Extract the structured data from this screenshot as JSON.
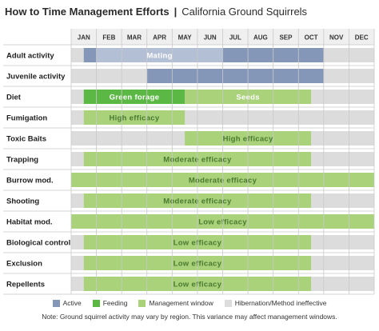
{
  "title": {
    "bold": "How to Time Management Efforts",
    "separator": "|",
    "subtitle": "California Ground Squirrels"
  },
  "colors": {
    "active": "#8597b8",
    "active_light": "#b3bfd4",
    "feeding": "#5bb844",
    "management": "#a9d27b",
    "hibernation": "#dcdcdc",
    "header_bg": "#efefef",
    "row_bg": "#ffffff",
    "grid": "#c9c9c9"
  },
  "chart_data": {
    "type": "table",
    "months": [
      "JAN",
      "FEB",
      "MAR",
      "APR",
      "MAY",
      "JUN",
      "JUL",
      "AUG",
      "SEP",
      "OCT",
      "NOV",
      "DEC"
    ],
    "rows": [
      {
        "label": "Adult activity",
        "segments": [
          {
            "kind": "hibernation",
            "start": 0,
            "end": 12
          },
          {
            "kind": "active",
            "start": 0.5,
            "end": 1
          },
          {
            "kind": "active_light",
            "start": 1,
            "end": 6
          },
          {
            "kind": "active",
            "start": 6,
            "end": 10
          }
        ],
        "labels": [
          {
            "text": "Mating",
            "start": 1,
            "end": 6,
            "color": "#ffffff"
          }
        ]
      },
      {
        "label": "Juvenile activity",
        "segments": [
          {
            "kind": "hibernation",
            "start": 0,
            "end": 12
          },
          {
            "kind": "active",
            "start": 3,
            "end": 10
          }
        ],
        "labels": []
      },
      {
        "label": "Diet",
        "segments": [
          {
            "kind": "hibernation",
            "start": 0,
            "end": 12
          },
          {
            "kind": "feeding",
            "start": 0.5,
            "end": 4.5
          },
          {
            "kind": "management",
            "start": 4.5,
            "end": 9.5
          }
        ],
        "labels": [
          {
            "text": "Green forage",
            "start": 0.5,
            "end": 4.5,
            "color": "#ffffff"
          },
          {
            "text": "Seeds",
            "start": 4.5,
            "end": 9.5,
            "color": "#ffffff"
          }
        ]
      },
      {
        "label": "Fumigation",
        "segments": [
          {
            "kind": "hibernation",
            "start": 0,
            "end": 12
          },
          {
            "kind": "management",
            "start": 0.5,
            "end": 4.5
          }
        ],
        "labels": [
          {
            "text": "High efficacy",
            "start": 0.5,
            "end": 4.5,
            "color": "#4a7a30"
          }
        ]
      },
      {
        "label": "Toxic Baits",
        "segments": [
          {
            "kind": "hibernation",
            "start": 0,
            "end": 12
          },
          {
            "kind": "management",
            "start": 4.5,
            "end": 9.5
          }
        ],
        "labels": [
          {
            "text": "High efficacy",
            "start": 4.5,
            "end": 9.5,
            "color": "#4a7a30"
          }
        ]
      },
      {
        "label": "Trapping",
        "segments": [
          {
            "kind": "hibernation",
            "start": 0,
            "end": 12
          },
          {
            "kind": "management",
            "start": 0.5,
            "end": 9.5
          }
        ],
        "labels": [
          {
            "text": "Moderate efficacy",
            "start": 0.5,
            "end": 9.5,
            "color": "#4a7a30"
          }
        ]
      },
      {
        "label": "Burrow mod.",
        "segments": [
          {
            "kind": "management",
            "start": 0,
            "end": 12
          }
        ],
        "labels": [
          {
            "text": "Moderate efficacy",
            "start": 0,
            "end": 12,
            "color": "#4a7a30"
          }
        ]
      },
      {
        "label": "Shooting",
        "segments": [
          {
            "kind": "hibernation",
            "start": 0,
            "end": 12
          },
          {
            "kind": "management",
            "start": 0.5,
            "end": 9.5
          }
        ],
        "labels": [
          {
            "text": "Moderate efficacy",
            "start": 0.5,
            "end": 9.5,
            "color": "#4a7a30"
          }
        ]
      },
      {
        "label": "Habitat mod.",
        "segments": [
          {
            "kind": "management",
            "start": 0,
            "end": 12
          }
        ],
        "labels": [
          {
            "text": "Low efficacy",
            "start": 0,
            "end": 12,
            "color": "#4a7a30"
          }
        ]
      },
      {
        "label": "Biological control",
        "segments": [
          {
            "kind": "hibernation",
            "start": 0,
            "end": 12
          },
          {
            "kind": "management",
            "start": 0.5,
            "end": 9.5
          }
        ],
        "labels": [
          {
            "text": "Low efficacy",
            "start": 0.5,
            "end": 9.5,
            "color": "#4a7a30"
          }
        ]
      },
      {
        "label": "Exclusion",
        "segments": [
          {
            "kind": "hibernation",
            "start": 0,
            "end": 12
          },
          {
            "kind": "management",
            "start": 0.5,
            "end": 9.5
          }
        ],
        "labels": [
          {
            "text": "Low efficacy",
            "start": 0.5,
            "end": 9.5,
            "color": "#4a7a30"
          }
        ]
      },
      {
        "label": "Repellents",
        "segments": [
          {
            "kind": "hibernation",
            "start": 0,
            "end": 12
          },
          {
            "kind": "management",
            "start": 0.5,
            "end": 9.5
          }
        ],
        "labels": [
          {
            "text": "Low efficacy",
            "start": 0.5,
            "end": 9.5,
            "color": "#4a7a30"
          }
        ]
      }
    ],
    "legend": [
      {
        "text": "Active",
        "kind": "active"
      },
      {
        "text": "Feeding",
        "kind": "feeding"
      },
      {
        "text": "Management window",
        "kind": "management"
      },
      {
        "text": "Hibernation/Method ineffective",
        "kind": "hibernation"
      }
    ],
    "note": "Note: Ground squirrel activity may vary by region. This variance may affect management windows."
  }
}
